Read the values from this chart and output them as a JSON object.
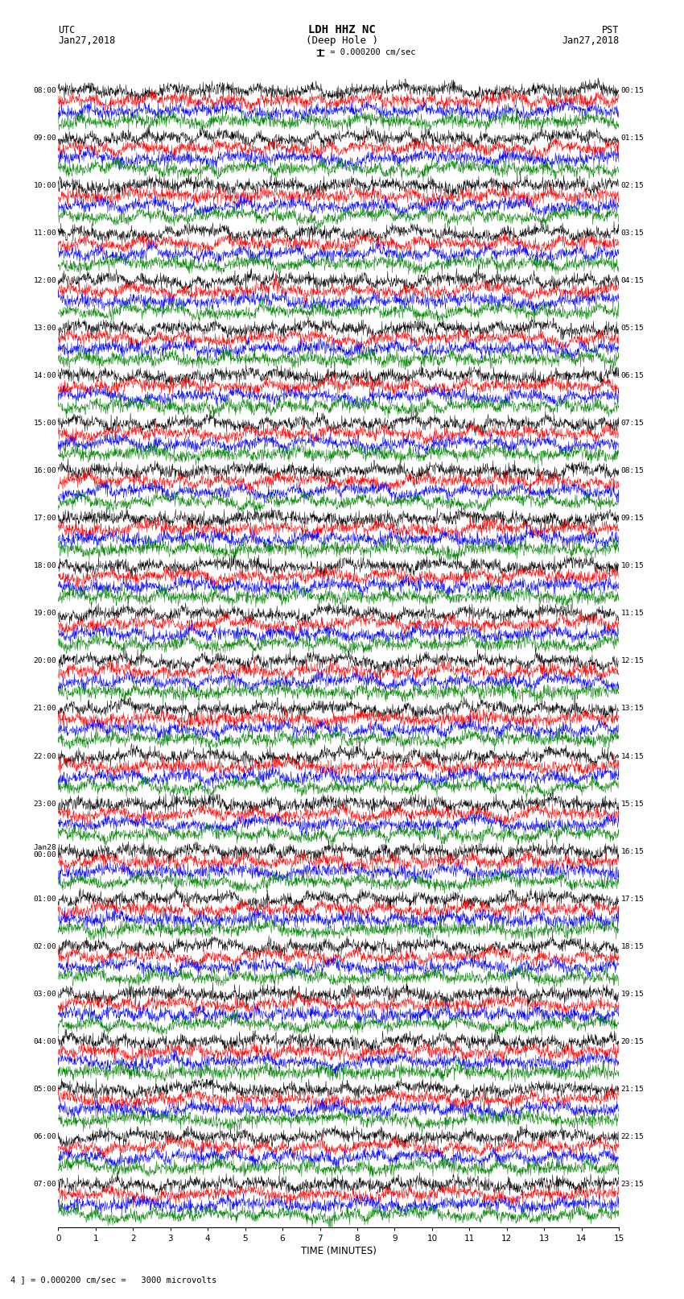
{
  "title_line1": "LDH HHZ NC",
  "title_line2": "(Deep Hole )",
  "scale_label": "I = 0.000200 cm/sec",
  "footer_label": "4 ] = 0.000200 cm/sec =   3000 microvolts",
  "utc_label": "UTC",
  "utc_date": "Jan27,2018",
  "pst_label": "PST",
  "pst_date": "Jan27,2018",
  "xlabel": "TIME (MINUTES)",
  "left_times": [
    "08:00",
    "09:00",
    "10:00",
    "11:00",
    "12:00",
    "13:00",
    "14:00",
    "15:00",
    "16:00",
    "17:00",
    "18:00",
    "19:00",
    "20:00",
    "21:00",
    "22:00",
    "23:00",
    "Jan28\n00:00",
    "01:00",
    "02:00",
    "03:00",
    "04:00",
    "05:00",
    "06:00",
    "07:00"
  ],
  "right_times": [
    "00:15",
    "01:15",
    "02:15",
    "03:15",
    "04:15",
    "05:15",
    "06:15",
    "07:15",
    "08:15",
    "09:15",
    "10:15",
    "11:15",
    "12:15",
    "13:15",
    "14:15",
    "15:15",
    "16:15",
    "17:15",
    "18:15",
    "19:15",
    "20:15",
    "21:15",
    "22:15",
    "23:15"
  ],
  "trace_colors": [
    "black",
    "red",
    "blue",
    "green"
  ],
  "n_rows": 24,
  "traces_per_row": 4,
  "bg_color": "white",
  "fig_width": 8.5,
  "fig_height": 16.13,
  "dpi": 100,
  "minutes": 15,
  "samples_per_row": 1800
}
